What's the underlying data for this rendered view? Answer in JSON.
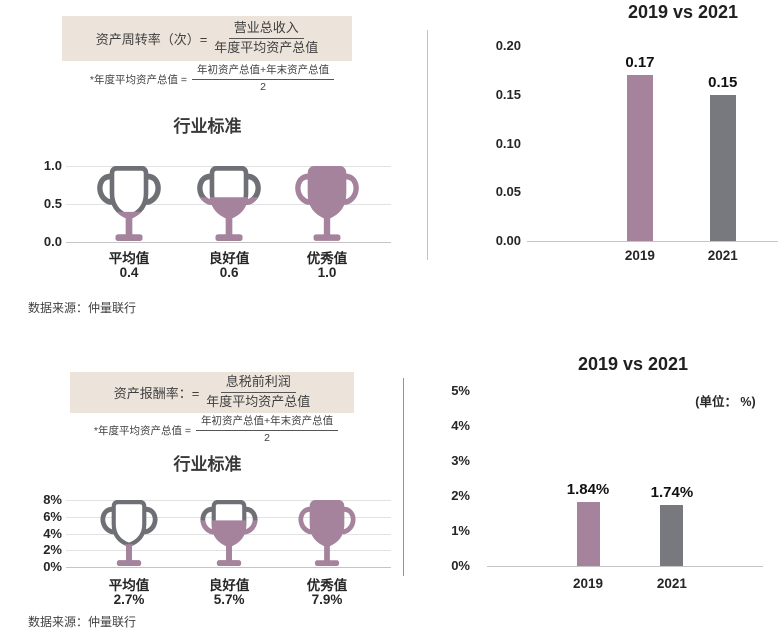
{
  "colors": {
    "purple": "#a5839c",
    "bar_gray": "#77797f",
    "trophy_outline": "#6e7076",
    "formula_bg": "#ece4db",
    "divider_top": "#c3c3c7",
    "divider_bottom": "#8f939b"
  },
  "sections": [
    {
      "metric": "资产周转率",
      "formula": {
        "label": "资产周转率（次）=",
        "numerator": "营业总收入",
        "denominator": "年度平均资产总值"
      },
      "note": {
        "label": "*年度平均资产总值 =",
        "numerator": "年初资产总值+年末资产总值",
        "denominator": "2"
      },
      "standard_title": "行业标准",
      "source": "数据来源：仲量联行",
      "comparison_title": "2019 vs 2021"
    },
    {
      "metric": "资产报酬率",
      "formula": {
        "label": "资产报酬率：=",
        "numerator": "息税前利润",
        "denominator": "年度平均资产总值"
      },
      "note": {
        "label": "*年度平均资产总值 =",
        "numerator": "年初资产总值+年末资产总值",
        "denominator": "2"
      },
      "standard_title": "行业标准",
      "source": "数据来源：仲量联行",
      "comparison_title": "2019 vs 2021",
      "unit_note": "(单位： %)"
    }
  ],
  "chart_data": [
    {
      "type": "bar",
      "subtype": "trophy",
      "title": "行业标准",
      "categories": [
        "平均值",
        "良好值",
        "优秀值"
      ],
      "values": [
        0.4,
        0.6,
        1.0
      ],
      "value_labels": [
        "0.4",
        "0.6",
        "1.0"
      ],
      "ytick_values": [
        1.0,
        0.5,
        0.0
      ],
      "ytick_labels": [
        "1.0",
        "0.5",
        "0.0"
      ],
      "ylim": [
        0,
        1.0
      ],
      "grid": true,
      "fill_color": "#a5839c",
      "outline_color": "#6e7076"
    },
    {
      "type": "bar",
      "title": "2019 vs 2021",
      "categories": [
        "2019",
        "2021"
      ],
      "values": [
        0.17,
        0.15
      ],
      "value_labels": [
        "0.17",
        "0.15"
      ],
      "ytick_values": [
        0.2,
        0.15,
        0.1,
        0.05,
        0.0
      ],
      "ytick_labels": [
        "0.20",
        "0.15",
        "0.10",
        "0.05",
        "0.00"
      ],
      "ylim": [
        0,
        0.2
      ],
      "grid": false,
      "bar_colors": [
        "#a5839c",
        "#77797f"
      ]
    },
    {
      "type": "bar",
      "subtype": "trophy",
      "title": "行业标准",
      "categories": [
        "平均值",
        "良好值",
        "优秀值"
      ],
      "values": [
        2.7,
        5.7,
        7.9
      ],
      "value_labels": [
        "2.7%",
        "5.7%",
        "7.9%"
      ],
      "ytick_values": [
        8,
        6,
        4,
        2,
        0
      ],
      "ytick_labels": [
        "8%",
        "6%",
        "4%",
        "2%",
        "0%"
      ],
      "ylim": [
        0,
        8
      ],
      "grid": true,
      "fill_color": "#a5839c",
      "outline_color": "#6e7076"
    },
    {
      "type": "bar",
      "title": "2019 vs 2021",
      "unit_note": "(单位： %)",
      "categories": [
        "2019",
        "2021"
      ],
      "values": [
        1.84,
        1.74
      ],
      "value_labels": [
        "1.84%",
        "1.74%"
      ],
      "ytick_values": [
        5,
        4,
        3,
        2,
        1,
        0
      ],
      "ytick_labels": [
        "5%",
        "4%",
        "3%",
        "2%",
        "1%",
        "0%"
      ],
      "ylim": [
        0,
        5
      ],
      "grid": false,
      "bar_colors": [
        "#a5839c",
        "#77797f"
      ]
    }
  ]
}
